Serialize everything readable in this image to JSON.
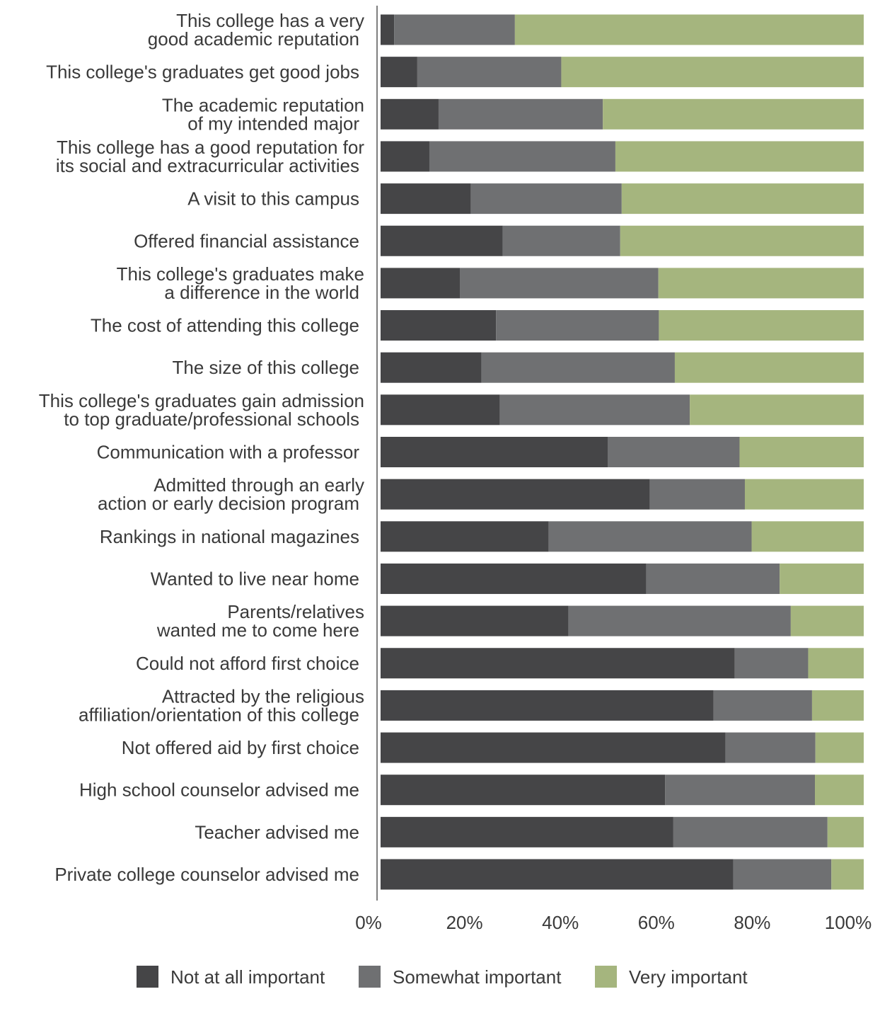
{
  "chart_data": {
    "type": "bar",
    "orientation": "horizontal",
    "stacked": true,
    "categories": [
      [
        "This college has a very",
        "good academic reputation"
      ],
      [
        "This college's graduates get good jobs"
      ],
      [
        "The academic reputation",
        "of my intended major"
      ],
      [
        "This college has a good reputation for",
        "its social and extracurricular activities"
      ],
      [
        "A visit to this campus"
      ],
      [
        "Offered financial assistance"
      ],
      [
        "This college's graduates make",
        "a difference in the world"
      ],
      [
        "The cost of attending this college"
      ],
      [
        "The size of this college"
      ],
      [
        "This college's graduates gain admission",
        "to top graduate/professional schools"
      ],
      [
        "Communication with a professor"
      ],
      [
        "Admitted through an early",
        "action or early decision program"
      ],
      [
        "Rankings in national magazines"
      ],
      [
        "Wanted to live near home"
      ],
      [
        "Parents/relatives",
        "wanted me to come here"
      ],
      [
        "Could not afford first choice"
      ],
      [
        "Attracted by the religious",
        "affiliation/orientation of this college"
      ],
      [
        "Not offered aid by first choice"
      ],
      [
        "High school counselor advised me"
      ],
      [
        "Teacher advised me"
      ],
      [
        "Private college counselor advised me"
      ]
    ],
    "series": [
      {
        "name": "Not at all important",
        "color": "#454547",
        "values": [
          2.8,
          7.6,
          12.0,
          10.1,
          18.7,
          25.3,
          16.4,
          23.9,
          20.9,
          24.7,
          47.0,
          55.7,
          34.8,
          55.0,
          38.9,
          73.3,
          68.9,
          71.4,
          58.9,
          60.6,
          73.0
        ]
      },
      {
        "name": "Somewhat important",
        "color": "#6f7072",
        "values": [
          25.0,
          29.8,
          34.0,
          38.5,
          31.2,
          24.3,
          41.1,
          33.7,
          40.0,
          39.3,
          27.3,
          19.7,
          42.0,
          27.6,
          46.0,
          15.2,
          20.4,
          18.6,
          31.0,
          31.9,
          20.3
        ]
      },
      {
        "name": "Very important",
        "color": "#a5b57e",
        "values": [
          72.2,
          62.6,
          54.0,
          51.4,
          50.1,
          50.4,
          42.5,
          42.4,
          39.1,
          36.0,
          25.7,
          24.6,
          23.2,
          17.4,
          15.1,
          11.5,
          10.7,
          10.0,
          10.1,
          7.5,
          6.7
        ]
      }
    ],
    "xlim": [
      0,
      100
    ],
    "xticks": [
      "0%",
      "20%",
      "40%",
      "60%",
      "80%",
      "100%"
    ],
    "legend_position": "bottom",
    "grid": false
  }
}
